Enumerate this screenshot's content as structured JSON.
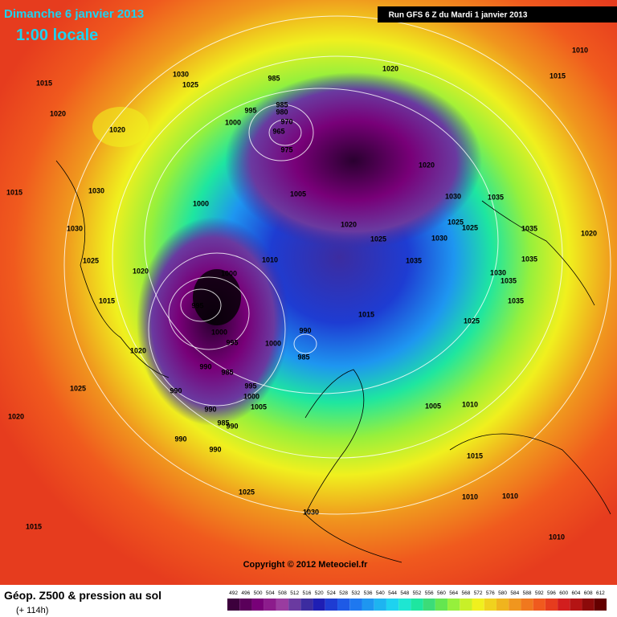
{
  "header": {
    "date": "Dimanche 6 janvier 2013",
    "time": "1:00 locale",
    "run": "Run GFS 6 Z du Mardi 1 janvier 2013"
  },
  "copyright": "Copyright © 2012 Meteociel.fr",
  "footer": {
    "title": "Géop. Z500 & pression au sol",
    "lead": "(+ 114h)"
  },
  "pressure_labels": [
    1015,
    1030,
    1025,
    1020,
    1020,
    1015,
    1030,
    1030,
    1025,
    1020,
    1015,
    1020,
    1025,
    1020,
    1015,
    1025,
    1030,
    1000,
    1000,
    995,
    1000,
    995,
    1000,
    990,
    985,
    990,
    985,
    990,
    995,
    1000,
    1005,
    990,
    985,
    990,
    990,
    990,
    985,
    995,
    1000,
    985,
    980,
    970,
    965,
    975,
    1005,
    1010,
    1020,
    1025,
    1020,
    1020,
    1030,
    1025,
    1030,
    1035,
    1035,
    1025,
    1035,
    1035,
    1030,
    1035,
    1035,
    1025,
    1015,
    1010,
    1015,
    1020,
    1005,
    1010,
    1015,
    1010,
    1010,
    1010
  ],
  "scale": {
    "labels": [
      492,
      496,
      500,
      504,
      508,
      512,
      516,
      520,
      524,
      528,
      532,
      536,
      540,
      544,
      548,
      552,
      556,
      560,
      564,
      568,
      572,
      576,
      580,
      584,
      588,
      592,
      596,
      600,
      604,
      608,
      612
    ],
    "colors": [
      "#3c003c",
      "#5a005a",
      "#780078",
      "#8c1c8c",
      "#9a3ca0",
      "#6a3aa0",
      "#3c2ca0",
      "#1e1eb4",
      "#1e3cd2",
      "#1e5ae6",
      "#1e78f0",
      "#1e96f0",
      "#1eb4f0",
      "#1ed2f0",
      "#1ee6d2",
      "#1ee6a0",
      "#3cdc78",
      "#64e650",
      "#96f03c",
      "#c8f028",
      "#f0f01e",
      "#f0d21e",
      "#f0b41e",
      "#f0961e",
      "#f0781e",
      "#f05a1e",
      "#e63c1e",
      "#d21e1e",
      "#b41414",
      "#8c0a0a",
      "#640000"
    ]
  }
}
